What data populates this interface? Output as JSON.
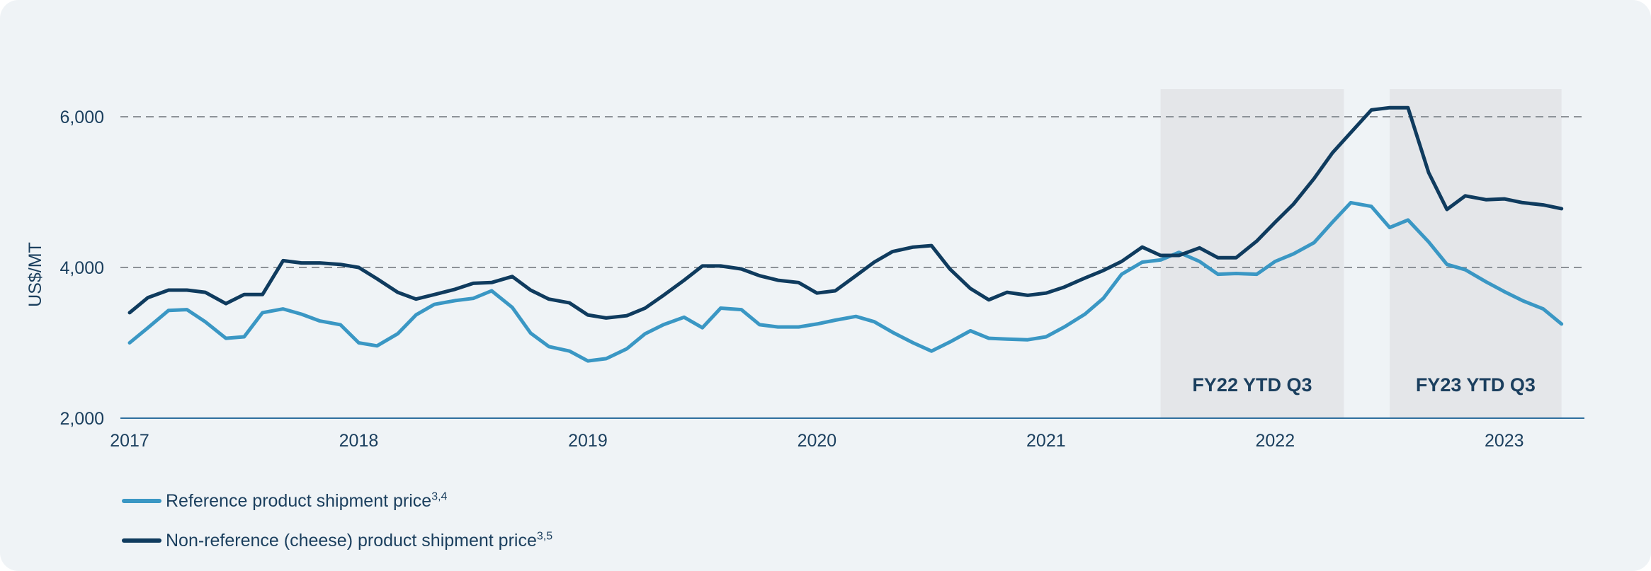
{
  "chart_data": {
    "type": "line",
    "ylabel": "US$/MT",
    "xlabel": "",
    "title": "",
    "ylim": [
      2000,
      6000
    ],
    "yticks": [
      2000,
      4000,
      6000
    ],
    "ytick_labels": [
      "2,000",
      "4,000",
      "6,000"
    ],
    "xlim": [
      2017.0,
      2023.35
    ],
    "xticks": [
      2017,
      2018,
      2019,
      2020,
      2021,
      2022,
      2023
    ],
    "xtick_labels": [
      "2017",
      "2018",
      "2019",
      "2020",
      "2021",
      "2022",
      "2023"
    ],
    "grid": "horizontal dashed at 4,000 and 6,000",
    "legend_position": "bottom-left",
    "shaded_periods": [
      {
        "label": "FY22 YTD Q3",
        "start": 2021.5,
        "end": 2022.3
      },
      {
        "label": "FY23 YTD Q3",
        "start": 2022.5,
        "end": 2023.25
      }
    ],
    "series": [
      {
        "name": "Reference product shipment price",
        "superscript": "3,4",
        "color": "#3a97c4",
        "points": [
          [
            2017.0,
            3000
          ],
          [
            2017.08,
            3200
          ],
          [
            2017.17,
            3430
          ],
          [
            2017.25,
            3440
          ],
          [
            2017.33,
            3280
          ],
          [
            2017.42,
            3060
          ],
          [
            2017.5,
            3080
          ],
          [
            2017.58,
            3400
          ],
          [
            2017.67,
            3450
          ],
          [
            2017.75,
            3380
          ],
          [
            2017.83,
            3290
          ],
          [
            2017.92,
            3240
          ],
          [
            2018.0,
            3000
          ],
          [
            2018.08,
            2960
          ],
          [
            2018.17,
            3120
          ],
          [
            2018.25,
            3370
          ],
          [
            2018.33,
            3510
          ],
          [
            2018.42,
            3560
          ],
          [
            2018.5,
            3590
          ],
          [
            2018.58,
            3690
          ],
          [
            2018.67,
            3470
          ],
          [
            2018.75,
            3130
          ],
          [
            2018.83,
            2950
          ],
          [
            2018.92,
            2890
          ],
          [
            2019.0,
            2760
          ],
          [
            2019.08,
            2790
          ],
          [
            2019.17,
            2920
          ],
          [
            2019.25,
            3120
          ],
          [
            2019.33,
            3240
          ],
          [
            2019.42,
            3340
          ],
          [
            2019.5,
            3200
          ],
          [
            2019.58,
            3460
          ],
          [
            2019.67,
            3440
          ],
          [
            2019.75,
            3240
          ],
          [
            2019.83,
            3210
          ],
          [
            2019.92,
            3210
          ],
          [
            2020.0,
            3250
          ],
          [
            2020.08,
            3300
          ],
          [
            2020.17,
            3350
          ],
          [
            2020.25,
            3280
          ],
          [
            2020.33,
            3140
          ],
          [
            2020.42,
            3000
          ],
          [
            2020.5,
            2890
          ],
          [
            2020.58,
            3010
          ],
          [
            2020.67,
            3160
          ],
          [
            2020.75,
            3060
          ],
          [
            2020.83,
            3050
          ],
          [
            2020.92,
            3040
          ],
          [
            2021.0,
            3080
          ],
          [
            2021.08,
            3210
          ],
          [
            2021.17,
            3380
          ],
          [
            2021.25,
            3590
          ],
          [
            2021.33,
            3910
          ],
          [
            2021.42,
            4070
          ],
          [
            2021.5,
            4100
          ],
          [
            2021.58,
            4200
          ],
          [
            2021.67,
            4080
          ],
          [
            2021.75,
            3910
          ],
          [
            2021.83,
            3920
          ],
          [
            2021.92,
            3910
          ],
          [
            2022.0,
            4080
          ],
          [
            2022.08,
            4180
          ],
          [
            2022.17,
            4330
          ],
          [
            2022.25,
            4600
          ],
          [
            2022.33,
            4860
          ],
          [
            2022.42,
            4810
          ],
          [
            2022.5,
            4530
          ],
          [
            2022.58,
            4630
          ],
          [
            2022.67,
            4340
          ],
          [
            2022.75,
            4040
          ],
          [
            2022.83,
            3970
          ],
          [
            2022.92,
            3810
          ],
          [
            2023.0,
            3680
          ],
          [
            2023.08,
            3560
          ],
          [
            2023.17,
            3450
          ],
          [
            2023.25,
            3250
          ]
        ]
      },
      {
        "name": "Non-reference (cheese) product shipment price",
        "superscript": "3,5",
        "color": "#0f3b5e",
        "points": [
          [
            2017.0,
            3400
          ],
          [
            2017.08,
            3600
          ],
          [
            2017.17,
            3700
          ],
          [
            2017.25,
            3700
          ],
          [
            2017.33,
            3670
          ],
          [
            2017.42,
            3520
          ],
          [
            2017.5,
            3640
          ],
          [
            2017.58,
            3640
          ],
          [
            2017.67,
            4090
          ],
          [
            2017.75,
            4060
          ],
          [
            2017.83,
            4060
          ],
          [
            2017.92,
            4040
          ],
          [
            2018.0,
            4000
          ],
          [
            2018.08,
            3850
          ],
          [
            2018.17,
            3670
          ],
          [
            2018.25,
            3580
          ],
          [
            2018.33,
            3640
          ],
          [
            2018.42,
            3710
          ],
          [
            2018.5,
            3790
          ],
          [
            2018.58,
            3800
          ],
          [
            2018.67,
            3880
          ],
          [
            2018.75,
            3700
          ],
          [
            2018.83,
            3580
          ],
          [
            2018.92,
            3530
          ],
          [
            2019.0,
            3370
          ],
          [
            2019.08,
            3330
          ],
          [
            2019.17,
            3360
          ],
          [
            2019.25,
            3460
          ],
          [
            2019.33,
            3630
          ],
          [
            2019.42,
            3830
          ],
          [
            2019.5,
            4020
          ],
          [
            2019.58,
            4020
          ],
          [
            2019.67,
            3980
          ],
          [
            2019.75,
            3890
          ],
          [
            2019.83,
            3830
          ],
          [
            2019.92,
            3800
          ],
          [
            2020.0,
            3660
          ],
          [
            2020.08,
            3690
          ],
          [
            2020.17,
            3890
          ],
          [
            2020.25,
            4070
          ],
          [
            2020.33,
            4210
          ],
          [
            2020.42,
            4270
          ],
          [
            2020.5,
            4290
          ],
          [
            2020.58,
            3980
          ],
          [
            2020.67,
            3720
          ],
          [
            2020.75,
            3570
          ],
          [
            2020.83,
            3670
          ],
          [
            2020.92,
            3630
          ],
          [
            2021.0,
            3660
          ],
          [
            2021.08,
            3740
          ],
          [
            2021.17,
            3860
          ],
          [
            2021.25,
            3960
          ],
          [
            2021.33,
            4080
          ],
          [
            2021.42,
            4270
          ],
          [
            2021.5,
            4160
          ],
          [
            2021.58,
            4160
          ],
          [
            2021.67,
            4260
          ],
          [
            2021.75,
            4130
          ],
          [
            2021.83,
            4130
          ],
          [
            2021.92,
            4350
          ],
          [
            2022.0,
            4600
          ],
          [
            2022.08,
            4840
          ],
          [
            2022.17,
            5180
          ],
          [
            2022.25,
            5520
          ],
          [
            2022.33,
            5790
          ],
          [
            2022.42,
            6090
          ],
          [
            2022.5,
            6120
          ],
          [
            2022.58,
            6120
          ],
          [
            2022.67,
            5260
          ],
          [
            2022.75,
            4770
          ],
          [
            2022.83,
            4950
          ],
          [
            2022.92,
            4900
          ],
          [
            2023.0,
            4910
          ],
          [
            2023.08,
            4860
          ],
          [
            2023.17,
            4830
          ],
          [
            2023.25,
            4780
          ]
        ]
      }
    ]
  }
}
